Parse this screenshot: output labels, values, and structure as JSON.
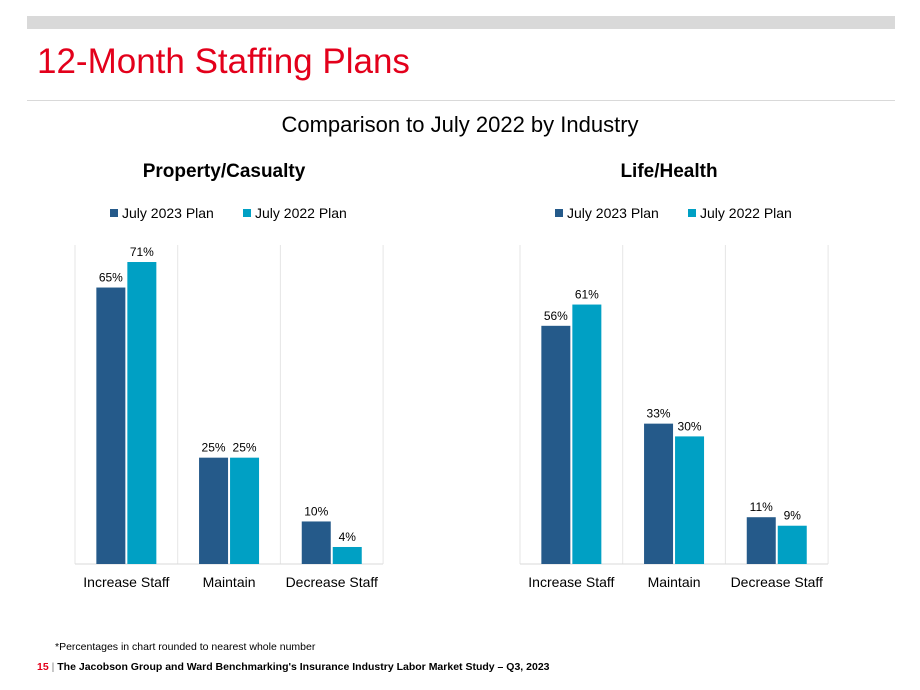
{
  "slide": {
    "title": "12-Month Staffing Plans",
    "subtitle": "Comparison to July 2022 by Industry",
    "footnote": "*Percentages in chart rounded to nearest whole number",
    "page_number": "15",
    "footer_separator": "|",
    "footer_text": "The Jacobson Group and Ward Benchmarking's Insurance Industry Labor Market Study – Q3, 2023"
  },
  "colors": {
    "series1": "#255a8a",
    "series2": "#00a0c4",
    "title": "#e3001b"
  },
  "chart_data": [
    {
      "type": "bar",
      "title": "Property/Casualty",
      "categories": [
        "Increase Staff",
        "Maintain",
        "Decrease Staff"
      ],
      "series": [
        {
          "name": "July 2023 Plan",
          "values": [
            65,
            25,
            10
          ],
          "labels": [
            "65%",
            "25%",
            "10%"
          ]
        },
        {
          "name": "July 2022 Plan",
          "values": [
            71,
            25,
            4
          ],
          "labels": [
            "71%",
            "25%",
            "4%"
          ]
        }
      ],
      "ylim": [
        0,
        75
      ],
      "legend": "top",
      "grid": "vertical separators"
    },
    {
      "type": "bar",
      "title": "Life/Health",
      "categories": [
        "Increase Staff",
        "Maintain",
        "Decrease Staff"
      ],
      "series": [
        {
          "name": "July 2023 Plan",
          "values": [
            56,
            33,
            11
          ],
          "labels": [
            "56%",
            "33%",
            "11%"
          ]
        },
        {
          "name": "July 2022 Plan",
          "values": [
            61,
            30,
            9
          ],
          "labels": [
            "61%",
            "30%",
            "9%"
          ]
        }
      ],
      "ylim": [
        0,
        75
      ],
      "legend": "top",
      "grid": "vertical separators"
    }
  ]
}
